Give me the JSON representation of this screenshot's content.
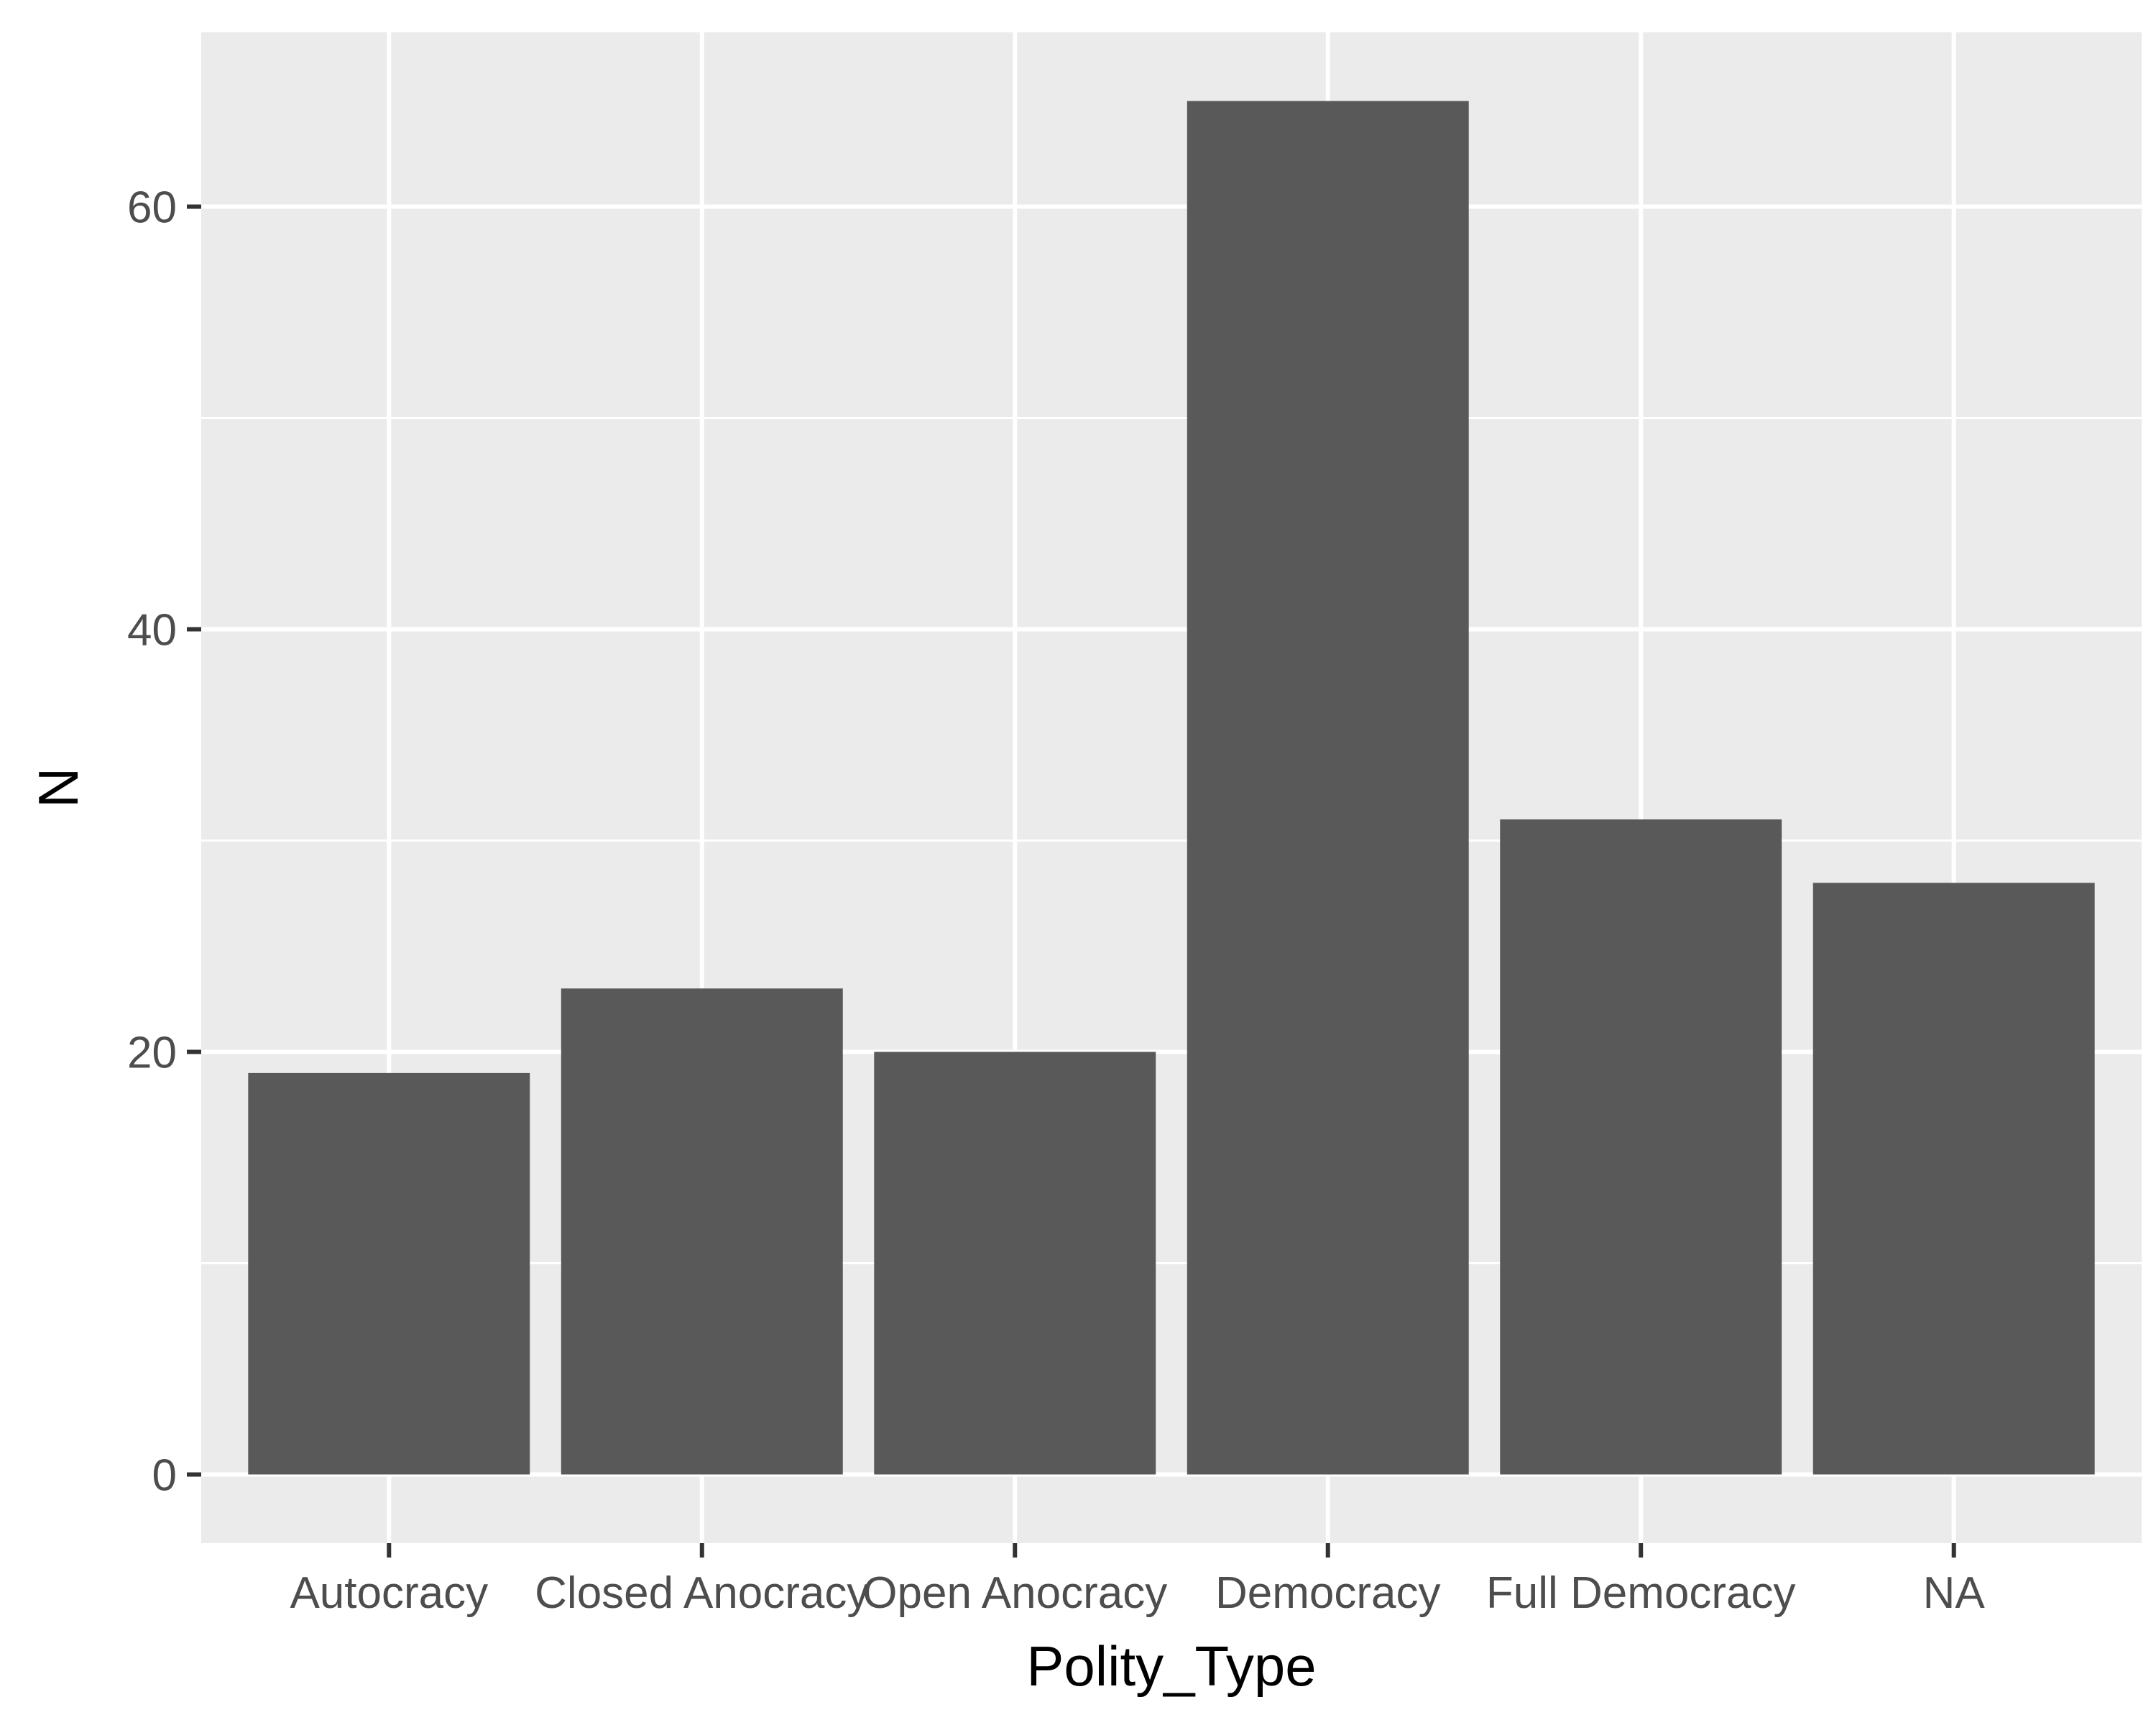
{
  "chart_data": {
    "type": "bar",
    "categories": [
      "Autocracy",
      "Closed Anocracy",
      "Open Anocracy",
      "Democracy",
      "Full Democracy",
      "NA"
    ],
    "values": [
      19,
      23,
      20,
      65,
      31,
      28
    ],
    "xlabel": "Polity_Type",
    "ylabel": "N",
    "ylim": [
      -3.25,
      68.25
    ],
    "yticks": [
      0,
      20,
      40,
      60
    ],
    "yticks_minor": [
      10,
      30,
      50
    ],
    "grid": true,
    "legend": "none",
    "colors": {
      "panel_background": "#ebebeb",
      "grid": "#ffffff",
      "bar_fill": "#595959",
      "tick_mark": "#333333",
      "tick_text": "#4d4d4d",
      "title_text": "#000000"
    }
  }
}
